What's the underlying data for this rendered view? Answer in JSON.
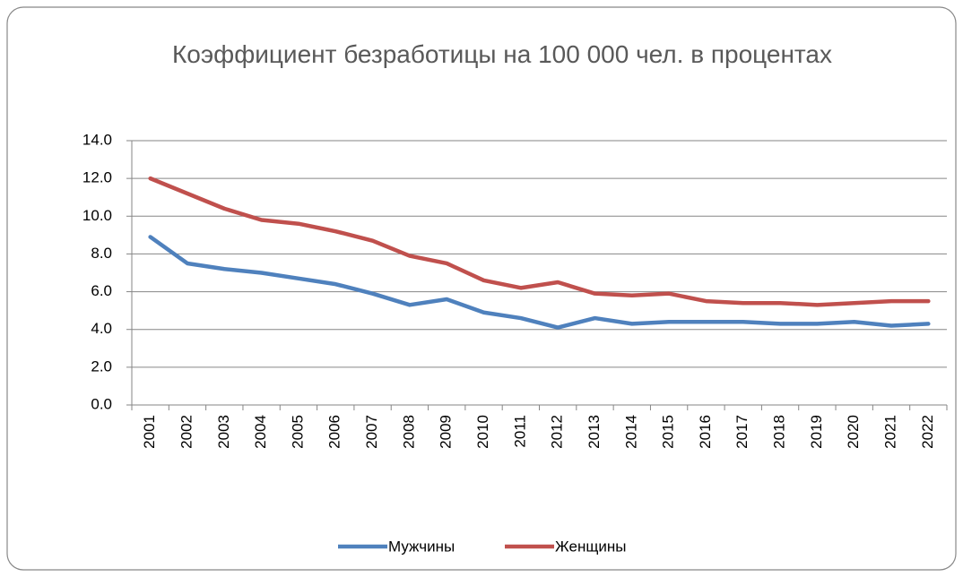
{
  "chart_data": {
    "type": "line",
    "title": "Коэффициент безработицы на 100 000 чел. в процентах",
    "categories": [
      "2001",
      "2002",
      "2003",
      "2004",
      "2005",
      "2006",
      "2007",
      "2008",
      "2009",
      "2010",
      "2011",
      "2012",
      "2013",
      "2014",
      "2015",
      "2016",
      "2017",
      "2018",
      "2019",
      "2020",
      "2021",
      "2022"
    ],
    "series": [
      {
        "name": "Мужчины",
        "color": "#4f81bd",
        "values": [
          8.9,
          7.5,
          7.2,
          7.0,
          6.7,
          6.4,
          5.9,
          5.3,
          5.6,
          4.9,
          4.6,
          4.1,
          4.6,
          4.3,
          4.4,
          4.4,
          4.4,
          4.3,
          4.3,
          4.4,
          4.2,
          4.3
        ]
      },
      {
        "name": "Женщины",
        "color": "#c0504d",
        "values": [
          12.0,
          11.2,
          10.4,
          9.8,
          9.6,
          9.2,
          8.7,
          7.9,
          7.5,
          6.6,
          6.2,
          6.5,
          5.9,
          5.8,
          5.9,
          5.5,
          5.4,
          5.4,
          5.3,
          5.4,
          5.5,
          5.5
        ]
      }
    ],
    "ylim": [
      0,
      14
    ],
    "yticks": [
      {
        "value": 0,
        "label": "0.0"
      },
      {
        "value": 2,
        "label": "2.0"
      },
      {
        "value": 4,
        "label": "4.0"
      },
      {
        "value": 6,
        "label": "6.0"
      },
      {
        "value": 8,
        "label": "8.0"
      },
      {
        "value": 10,
        "label": "10.0"
      },
      {
        "value": 12,
        "label": "12.0"
      },
      {
        "value": 14,
        "label": "14.0"
      }
    ],
    "grid": true,
    "legend": "bottom"
  }
}
